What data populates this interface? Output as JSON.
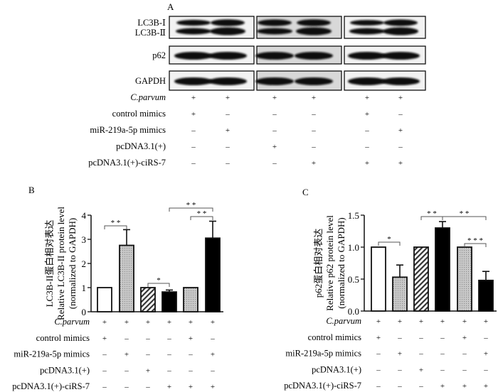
{
  "panel_a": {
    "label": "A",
    "blot_rows": [
      "LC3B-Ⅰ",
      "LC3B-Ⅱ",
      "p62",
      "GAPDH"
    ],
    "conditions": [
      {
        "label": "C.parvum",
        "italic": true,
        "values": [
          "+",
          "+",
          "+",
          "+",
          "+",
          "+"
        ]
      },
      {
        "label": "control mimics",
        "values": [
          "+",
          "–",
          "–",
          "–",
          "+",
          "–"
        ]
      },
      {
        "label": "miR-219a-5p mimics",
        "values": [
          "–",
          "+",
          "–",
          "–",
          "–",
          "+"
        ]
      },
      {
        "label": "pcDNA3.1(+)",
        "values": [
          "–",
          "–",
          "+",
          "–",
          "–",
          "–"
        ]
      },
      {
        "label": "pcDNA3.1(+)-ciRS-7",
        "values": [
          "–",
          "–",
          "–",
          "+",
          "+",
          "+"
        ]
      }
    ]
  },
  "chart_data": [
    {
      "type": "bar",
      "panel_label": "B",
      "ylabel": [
        "LC3B-II蛋白相对表达",
        "Relative LC3B-II protein level",
        "(normalized to GAPDH)"
      ],
      "ylim": [
        0,
        4
      ],
      "yticks": [
        "0",
        "1",
        "2",
        "3",
        "4"
      ],
      "values": [
        1.0,
        2.75,
        1.0,
        0.82,
        1.0,
        3.05
      ],
      "errors": [
        0,
        0.65,
        0,
        0.08,
        0,
        0.7
      ],
      "fills": [
        "white",
        "dotted-gray",
        "hatched",
        "black",
        "dotted-gray",
        "black"
      ],
      "significance": [
        {
          "from": 0,
          "to": 1,
          "label": "**"
        },
        {
          "from": 2,
          "to": 3,
          "label": "*"
        },
        {
          "from": 4,
          "to": 5,
          "label": "**"
        },
        {
          "from": 3,
          "to": 5,
          "label": "**"
        }
      ],
      "conditions": [
        {
          "label": "C.parvum",
          "italic": true,
          "values": [
            "+",
            "+",
            "+",
            "+",
            "+",
            "+"
          ]
        },
        {
          "label": "control mimics",
          "values": [
            "+",
            "–",
            "–",
            "–",
            "+",
            "–"
          ]
        },
        {
          "label": "miR-219a-5p mimics",
          "values": [
            "–",
            "+",
            "–",
            "–",
            "–",
            "+"
          ]
        },
        {
          "label": "pcDNA3.1(+)",
          "values": [
            "–",
            "–",
            "+",
            "–",
            "–",
            "–"
          ]
        },
        {
          "label": "pcDNA3.1(+)-ciRS-7",
          "values": [
            "–",
            "–",
            "–",
            "+",
            "+",
            "+"
          ]
        }
      ]
    },
    {
      "type": "bar",
      "panel_label": "C",
      "ylabel": [
        "p62蛋白相对表达",
        "Relative p62 protein level",
        "(normalized to GAPDH)"
      ],
      "ylim": [
        0,
        1.5
      ],
      "yticks": [
        "0.0",
        "0.5",
        "1.0",
        "1.5"
      ],
      "values": [
        1.0,
        0.53,
        1.0,
        1.3,
        1.0,
        0.48
      ],
      "errors": [
        0,
        0.19,
        0,
        0.1,
        0,
        0.14
      ],
      "fills": [
        "white",
        "dotted-gray",
        "hatched",
        "black",
        "dotted-gray",
        "black"
      ],
      "significance": [
        {
          "from": 0,
          "to": 1,
          "label": "*"
        },
        {
          "from": 2,
          "to": 3,
          "label": "**"
        },
        {
          "from": 3,
          "to": 5,
          "label": "**"
        },
        {
          "from": 4,
          "to": 5,
          "label": "***"
        }
      ],
      "conditions": [
        {
          "label": "C.parvum",
          "italic": true,
          "values": [
            "+",
            "+",
            "+",
            "+",
            "+",
            "+"
          ]
        },
        {
          "label": "control mimics",
          "values": [
            "+",
            "–",
            "–",
            "–",
            "+",
            "–"
          ]
        },
        {
          "label": "miR-219a-5p mimics",
          "values": [
            "–",
            "+",
            "–",
            "–",
            "–",
            "+"
          ]
        },
        {
          "label": "pcDNA3.1(+)",
          "values": [
            "–",
            "–",
            "+",
            "–",
            "–",
            "–"
          ]
        },
        {
          "label": "pcDNA3.1(+)-ciRS-7",
          "values": [
            "–",
            "–",
            "–",
            "+",
            "+",
            "+"
          ]
        }
      ]
    }
  ]
}
